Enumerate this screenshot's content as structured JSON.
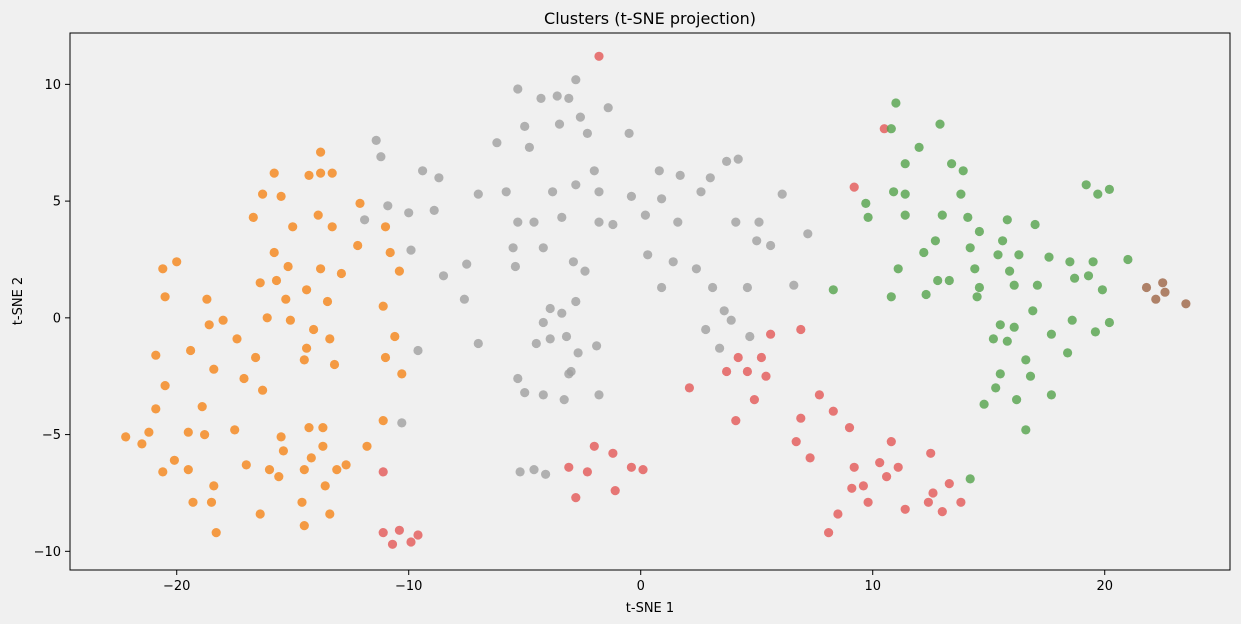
{
  "chart_data": {
    "type": "scatter",
    "title": "Clusters (t-SNE projection)",
    "xlabel": "t-SNE 1",
    "ylabel": "t-SNE 2",
    "xlim": [
      -24.6,
      25.4
    ],
    "ylim": [
      -10.8,
      12.2
    ],
    "xticks": [
      -20,
      -10,
      0,
      10,
      20
    ],
    "xtick_labels": [
      "−20",
      "−10",
      "0",
      "10",
      "20"
    ],
    "yticks": [
      -10,
      -5,
      0,
      5,
      10
    ],
    "ytick_labels": [
      "−10",
      "−5",
      "0",
      "5",
      "10"
    ],
    "grid": false,
    "legend": false,
    "series": [
      {
        "color": "#f58518",
        "points": [
          [
            -22.2,
            -5.1
          ],
          [
            -21.5,
            -5.4
          ],
          [
            -21.2,
            -4.9
          ],
          [
            -20.9,
            -3.9
          ],
          [
            -20.9,
            -1.6
          ],
          [
            -20.6,
            -6.6
          ],
          [
            -20.5,
            -2.9
          ],
          [
            -20.5,
            0.9
          ],
          [
            -20.6,
            2.1
          ],
          [
            -20.0,
            2.4
          ],
          [
            -20.1,
            -6.1
          ],
          [
            -19.5,
            -4.9
          ],
          [
            -19.5,
            -6.5
          ],
          [
            -19.4,
            -1.4
          ],
          [
            -19.3,
            -7.9
          ],
          [
            -18.9,
            -3.8
          ],
          [
            -18.8,
            -5.0
          ],
          [
            -18.7,
            0.8
          ],
          [
            -18.6,
            -0.3
          ],
          [
            -18.5,
            -7.9
          ],
          [
            -18.4,
            -7.2
          ],
          [
            -18.4,
            -2.2
          ],
          [
            -18.3,
            -9.2
          ],
          [
            -18.0,
            -0.1
          ],
          [
            -17.5,
            -4.8
          ],
          [
            -17.4,
            -0.9
          ],
          [
            -17.1,
            -2.6
          ],
          [
            -17.0,
            -6.3
          ],
          [
            -16.7,
            4.3
          ],
          [
            -16.6,
            -1.7
          ],
          [
            -16.4,
            -8.4
          ],
          [
            -16.4,
            1.5
          ],
          [
            -16.3,
            -3.1
          ],
          [
            -16.3,
            5.3
          ],
          [
            -16.1,
            0.0
          ],
          [
            -16.0,
            -6.5
          ],
          [
            -15.8,
            6.2
          ],
          [
            -15.8,
            2.8
          ],
          [
            -15.7,
            1.6
          ],
          [
            -15.6,
            -6.8
          ],
          [
            -15.5,
            -5.1
          ],
          [
            -15.5,
            5.2
          ],
          [
            -15.4,
            -5.7
          ],
          [
            -15.3,
            0.8
          ],
          [
            -15.2,
            2.2
          ],
          [
            -15.1,
            -0.1
          ],
          [
            -15.0,
            3.9
          ],
          [
            -14.6,
            -7.9
          ],
          [
            -14.5,
            -6.5
          ],
          [
            -14.5,
            -8.9
          ],
          [
            -14.5,
            -1.8
          ],
          [
            -14.4,
            -1.3
          ],
          [
            -14.4,
            1.2
          ],
          [
            -14.3,
            6.1
          ],
          [
            -14.3,
            -4.7
          ],
          [
            -14.2,
            -6.0
          ],
          [
            -14.1,
            -0.5
          ],
          [
            -13.9,
            4.4
          ],
          [
            -13.8,
            7.1
          ],
          [
            -13.8,
            2.1
          ],
          [
            -13.8,
            6.2
          ],
          [
            -13.7,
            -4.7
          ],
          [
            -13.7,
            -5.5
          ],
          [
            -13.6,
            -7.2
          ],
          [
            -13.5,
            0.7
          ],
          [
            -13.4,
            -8.4
          ],
          [
            -13.4,
            -0.9
          ],
          [
            -13.3,
            3.9
          ],
          [
            -13.3,
            6.2
          ],
          [
            -13.2,
            -2.0
          ],
          [
            -13.1,
            -6.5
          ],
          [
            -12.9,
            1.9
          ],
          [
            -12.7,
            -6.3
          ],
          [
            -12.2,
            3.1
          ],
          [
            -12.1,
            4.9
          ],
          [
            -11.8,
            -5.5
          ],
          [
            -11.1,
            -4.4
          ],
          [
            -11.1,
            0.5
          ],
          [
            -11.0,
            -1.7
          ],
          [
            -11.0,
            3.9
          ],
          [
            -10.8,
            2.8
          ],
          [
            -10.6,
            -0.8
          ],
          [
            -10.4,
            2.0
          ],
          [
            -10.3,
            -2.4
          ]
        ]
      },
      {
        "color": "#a0a0a0",
        "points": [
          [
            -11.9,
            4.2
          ],
          [
            -11.4,
            7.6
          ],
          [
            -11.2,
            6.9
          ],
          [
            -10.9,
            4.8
          ],
          [
            -10.3,
            -4.5
          ],
          [
            -10.0,
            4.5
          ],
          [
            -9.9,
            2.9
          ],
          [
            -9.6,
            -1.4
          ],
          [
            -9.4,
            6.3
          ],
          [
            -8.9,
            4.6
          ],
          [
            -8.7,
            6.0
          ],
          [
            -8.5,
            1.8
          ],
          [
            -7.6,
            0.8
          ],
          [
            -7.5,
            2.3
          ],
          [
            -7.0,
            -1.1
          ],
          [
            -7.0,
            5.3
          ],
          [
            -6.2,
            7.5
          ],
          [
            -5.8,
            5.4
          ],
          [
            -5.5,
            3.0
          ],
          [
            -5.4,
            2.2
          ],
          [
            -5.3,
            9.8
          ],
          [
            -5.3,
            4.1
          ],
          [
            -5.3,
            -2.6
          ],
          [
            -5.0,
            8.2
          ],
          [
            -5.0,
            -3.2
          ],
          [
            -4.8,
            7.3
          ],
          [
            -4.6,
            4.1
          ],
          [
            -4.5,
            -1.1
          ],
          [
            -4.3,
            9.4
          ],
          [
            -4.2,
            -0.2
          ],
          [
            -4.2,
            3.0
          ],
          [
            -4.2,
            -3.3
          ],
          [
            -3.9,
            -0.9
          ],
          [
            -3.9,
            0.4
          ],
          [
            -3.8,
            5.4
          ],
          [
            -3.6,
            9.5
          ],
          [
            -3.5,
            8.3
          ],
          [
            -3.4,
            0.2
          ],
          [
            -3.4,
            4.3
          ],
          [
            -3.3,
            -3.5
          ],
          [
            -3.2,
            -0.8
          ],
          [
            -3.1,
            9.4
          ],
          [
            -3.0,
            -2.3
          ],
          [
            -2.9,
            2.4
          ],
          [
            -2.8,
            5.7
          ],
          [
            -2.8,
            10.2
          ],
          [
            -2.8,
            0.7
          ],
          [
            -2.7,
            -1.5
          ],
          [
            -2.6,
            8.6
          ],
          [
            -2.4,
            2.0
          ],
          [
            -2.3,
            7.9
          ],
          [
            -2.0,
            6.3
          ],
          [
            -1.9,
            -1.2
          ],
          [
            -1.8,
            4.1
          ],
          [
            -1.8,
            5.4
          ],
          [
            -1.8,
            -3.3
          ],
          [
            -1.4,
            9.0
          ],
          [
            -1.2,
            4.0
          ],
          [
            -0.5,
            7.9
          ],
          [
            -0.4,
            5.2
          ],
          [
            0.2,
            4.4
          ],
          [
            0.3,
            2.7
          ],
          [
            0.8,
            6.3
          ],
          [
            0.9,
            5.1
          ],
          [
            0.9,
            1.3
          ],
          [
            1.4,
            2.4
          ],
          [
            1.6,
            4.1
          ],
          [
            1.7,
            6.1
          ],
          [
            2.4,
            2.1
          ],
          [
            2.6,
            5.4
          ],
          [
            2.8,
            -0.5
          ],
          [
            3.0,
            6.0
          ],
          [
            3.1,
            1.3
          ],
          [
            3.4,
            -1.3
          ],
          [
            3.6,
            0.3
          ],
          [
            3.7,
            6.7
          ],
          [
            3.9,
            -0.1
          ],
          [
            4.1,
            4.1
          ],
          [
            4.2,
            6.8
          ],
          [
            4.6,
            1.3
          ],
          [
            4.7,
            -0.8
          ],
          [
            5.0,
            3.3
          ],
          [
            5.1,
            4.1
          ],
          [
            5.6,
            3.1
          ],
          [
            6.1,
            5.3
          ],
          [
            6.6,
            1.4
          ],
          [
            7.2,
            3.6
          ],
          [
            -5.2,
            -6.6
          ],
          [
            -4.6,
            -6.5
          ],
          [
            -4.1,
            -6.7
          ],
          [
            -3.1,
            -2.4
          ]
        ]
      },
      {
        "color": "#e45756",
        "points": [
          [
            -1.8,
            11.2
          ],
          [
            -11.1,
            -6.6
          ],
          [
            -11.1,
            -9.2
          ],
          [
            -10.7,
            -9.7
          ],
          [
            -10.4,
            -9.1
          ],
          [
            -9.9,
            -9.6
          ],
          [
            -9.6,
            -9.3
          ],
          [
            -3.1,
            -6.4
          ],
          [
            -2.8,
            -7.7
          ],
          [
            -2.3,
            -6.6
          ],
          [
            -2.0,
            -5.5
          ],
          [
            -1.2,
            -5.8
          ],
          [
            -1.1,
            -7.4
          ],
          [
            -0.4,
            -6.4
          ],
          [
            0.1,
            -6.5
          ],
          [
            2.1,
            -3.0
          ],
          [
            3.7,
            -2.3
          ],
          [
            4.2,
            -1.7
          ],
          [
            4.1,
            -4.4
          ],
          [
            4.6,
            -2.3
          ],
          [
            4.9,
            -3.5
          ],
          [
            5.2,
            -1.7
          ],
          [
            5.4,
            -2.5
          ],
          [
            5.6,
            -0.7
          ],
          [
            6.7,
            -5.3
          ],
          [
            6.9,
            -0.5
          ],
          [
            6.9,
            -4.3
          ],
          [
            7.3,
            -6.0
          ],
          [
            7.7,
            -3.3
          ],
          [
            8.1,
            -9.2
          ],
          [
            8.3,
            -4.0
          ],
          [
            8.5,
            -8.4
          ],
          [
            9.0,
            -4.7
          ],
          [
            9.1,
            -7.3
          ],
          [
            9.2,
            -6.4
          ],
          [
            9.6,
            -7.2
          ],
          [
            9.8,
            -7.9
          ],
          [
            10.3,
            -6.2
          ],
          [
            10.6,
            -6.8
          ],
          [
            10.8,
            -5.3
          ],
          [
            11.1,
            -6.4
          ],
          [
            11.4,
            -8.2
          ],
          [
            12.4,
            -7.9
          ],
          [
            12.5,
            -5.8
          ],
          [
            12.6,
            -7.5
          ],
          [
            13.0,
            -8.3
          ],
          [
            13.3,
            -7.1
          ],
          [
            13.8,
            -7.9
          ],
          [
            9.2,
            5.6
          ],
          [
            10.5,
            8.1
          ]
        ]
      },
      {
        "color": "#54a24b",
        "points": [
          [
            8.3,
            1.2
          ],
          [
            9.7,
            4.9
          ],
          [
            9.8,
            4.3
          ],
          [
            10.8,
            8.1
          ],
          [
            10.8,
            0.9
          ],
          [
            10.9,
            5.4
          ],
          [
            11.0,
            9.2
          ],
          [
            11.1,
            2.1
          ],
          [
            11.4,
            6.6
          ],
          [
            11.4,
            5.3
          ],
          [
            11.4,
            4.4
          ],
          [
            12.0,
            7.3
          ],
          [
            12.2,
            2.8
          ],
          [
            12.3,
            1.0
          ],
          [
            12.7,
            3.3
          ],
          [
            12.8,
            1.6
          ],
          [
            12.9,
            8.3
          ],
          [
            13.0,
            4.4
          ],
          [
            13.3,
            1.6
          ],
          [
            13.4,
            6.6
          ],
          [
            13.8,
            5.3
          ],
          [
            13.9,
            6.3
          ],
          [
            14.1,
            4.3
          ],
          [
            14.2,
            3.0
          ],
          [
            14.2,
            -6.9
          ],
          [
            14.4,
            2.1
          ],
          [
            14.5,
            0.9
          ],
          [
            14.6,
            1.3
          ],
          [
            14.6,
            3.7
          ],
          [
            14.8,
            -3.7
          ],
          [
            15.2,
            -0.9
          ],
          [
            15.3,
            -3.0
          ],
          [
            15.4,
            2.7
          ],
          [
            15.5,
            -0.3
          ],
          [
            15.5,
            -2.4
          ],
          [
            15.6,
            3.3
          ],
          [
            15.8,
            4.2
          ],
          [
            15.8,
            -1.0
          ],
          [
            15.9,
            2.0
          ],
          [
            16.1,
            -0.4
          ],
          [
            16.1,
            1.4
          ],
          [
            16.2,
            -3.5
          ],
          [
            16.3,
            2.7
          ],
          [
            16.6,
            -1.8
          ],
          [
            16.6,
            -4.8
          ],
          [
            16.8,
            -2.5
          ],
          [
            16.9,
            0.3
          ],
          [
            17.0,
            4.0
          ],
          [
            17.1,
            1.4
          ],
          [
            17.6,
            2.6
          ],
          [
            17.7,
            -3.3
          ],
          [
            17.7,
            -0.7
          ],
          [
            18.4,
            -1.5
          ],
          [
            18.5,
            2.4
          ],
          [
            18.6,
            -0.1
          ],
          [
            18.7,
            1.7
          ],
          [
            19.2,
            5.7
          ],
          [
            19.3,
            1.8
          ],
          [
            19.5,
            2.4
          ],
          [
            19.6,
            -0.6
          ],
          [
            19.7,
            5.3
          ],
          [
            19.9,
            1.2
          ],
          [
            20.2,
            -0.2
          ],
          [
            20.2,
            5.5
          ],
          [
            21.0,
            2.5
          ]
        ]
      },
      {
        "color": "#9d6546",
        "points": [
          [
            21.8,
            1.3
          ],
          [
            22.2,
            0.8
          ],
          [
            22.5,
            1.5
          ],
          [
            22.6,
            1.1
          ],
          [
            23.5,
            0.6
          ]
        ]
      }
    ]
  }
}
